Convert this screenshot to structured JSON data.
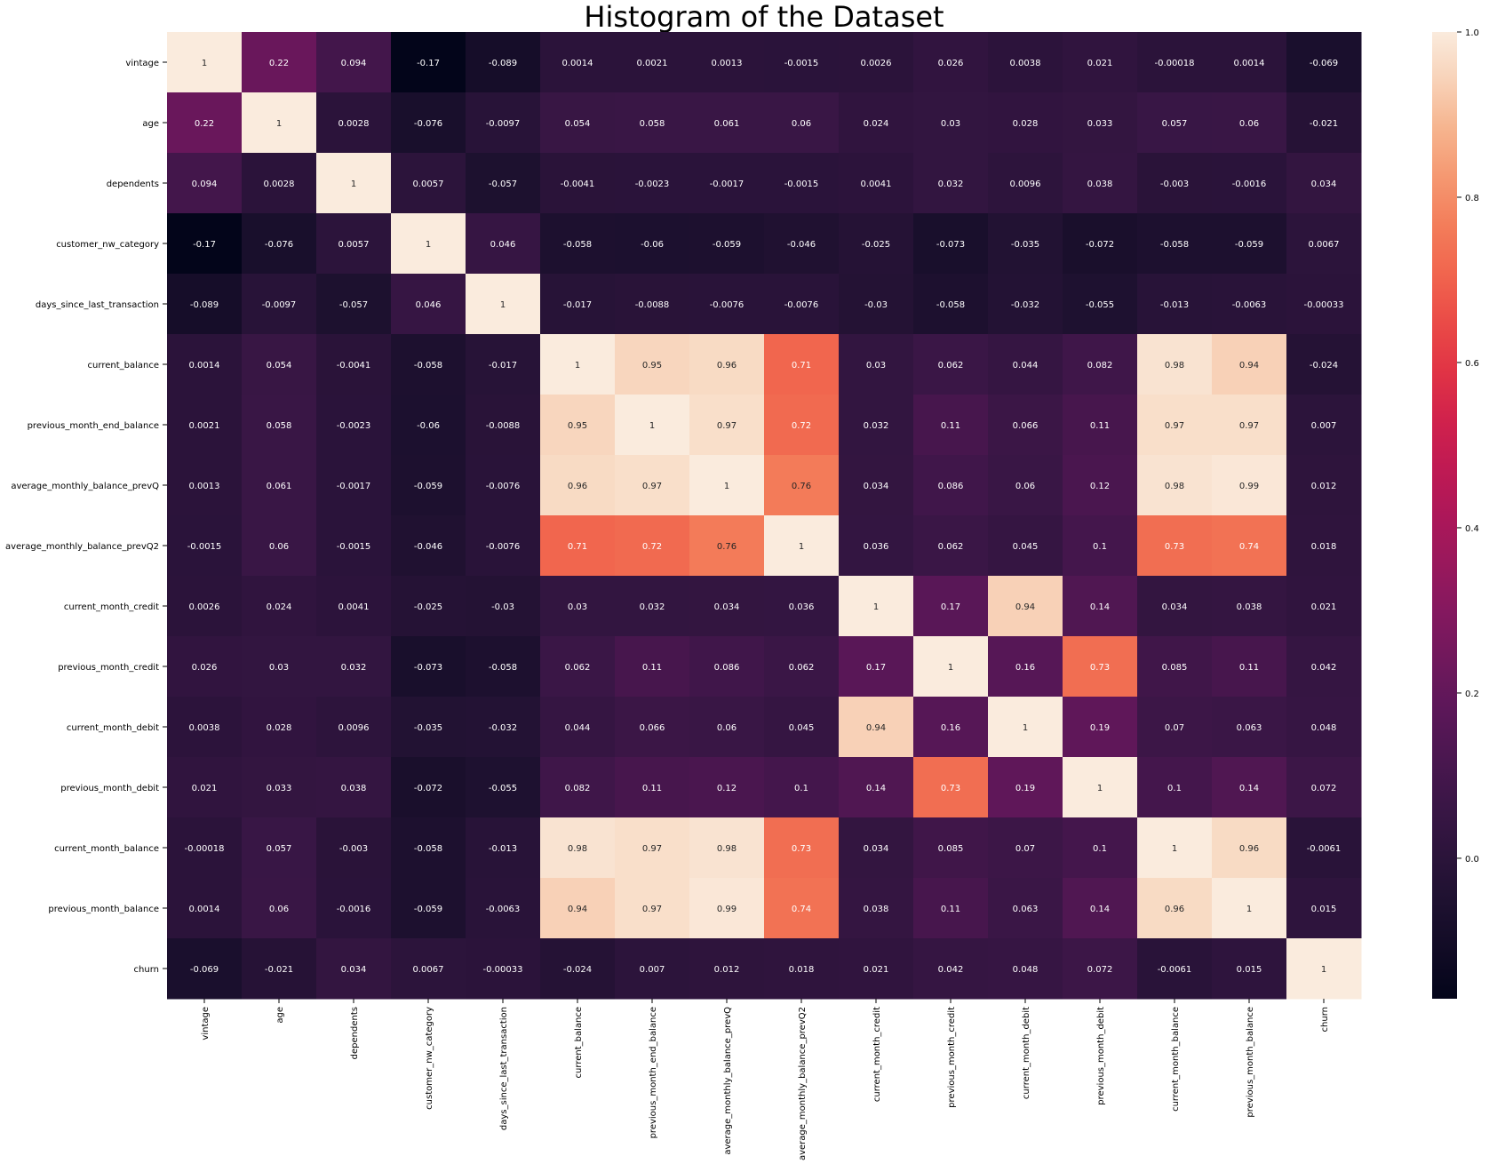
{
  "chart_data": {
    "type": "heatmap",
    "title": "Histogram of the Dataset",
    "labels": [
      "vintage",
      "age",
      "dependents",
      "customer_nw_category",
      "days_since_last_transaction",
      "current_balance",
      "previous_month_end_balance",
      "average_monthly_balance_prevQ",
      "average_monthly_balance_prevQ2",
      "current_month_credit",
      "previous_month_credit",
      "current_month_debit",
      "previous_month_debit",
      "current_month_balance",
      "previous_month_balance",
      "churn"
    ],
    "values": [
      [
        "1",
        "0.22",
        "0.094",
        "-0.17",
        "-0.089",
        "0.0014",
        "0.0021",
        "0.0013",
        "-0.0015",
        "0.0026",
        "0.026",
        "0.0038",
        "0.021",
        "-0.00018",
        "0.0014",
        "-0.069"
      ],
      [
        "0.22",
        "1",
        "0.0028",
        "-0.076",
        "-0.0097",
        "0.054",
        "0.058",
        "0.061",
        "0.06",
        "0.024",
        "0.03",
        "0.028",
        "0.033",
        "0.057",
        "0.06",
        "-0.021"
      ],
      [
        "0.094",
        "0.0028",
        "1",
        "0.0057",
        "-0.057",
        "-0.0041",
        "-0.0023",
        "-0.0017",
        "-0.0015",
        "0.0041",
        "0.032",
        "0.0096",
        "0.038",
        "-0.003",
        "-0.0016",
        "0.034"
      ],
      [
        "-0.17",
        "-0.076",
        "0.0057",
        "1",
        "0.046",
        "-0.058",
        "-0.06",
        "-0.059",
        "-0.046",
        "-0.025",
        "-0.073",
        "-0.035",
        "-0.072",
        "-0.058",
        "-0.059",
        "0.0067"
      ],
      [
        "-0.089",
        "-0.0097",
        "-0.057",
        "0.046",
        "1",
        "-0.017",
        "-0.0088",
        "-0.0076",
        "-0.0076",
        "-0.03",
        "-0.058",
        "-0.032",
        "-0.055",
        "-0.013",
        "-0.0063",
        "-0.00033"
      ],
      [
        "0.0014",
        "0.054",
        "-0.0041",
        "-0.058",
        "-0.017",
        "1",
        "0.95",
        "0.96",
        "0.71",
        "0.03",
        "0.062",
        "0.044",
        "0.082",
        "0.98",
        "0.94",
        "-0.024"
      ],
      [
        "0.0021",
        "0.058",
        "-0.0023",
        "-0.06",
        "-0.0088",
        "0.95",
        "1",
        "0.97",
        "0.72",
        "0.032",
        "0.11",
        "0.066",
        "0.11",
        "0.97",
        "0.97",
        "0.007"
      ],
      [
        "0.0013",
        "0.061",
        "-0.0017",
        "-0.059",
        "-0.0076",
        "0.96",
        "0.97",
        "1",
        "0.76",
        "0.034",
        "0.086",
        "0.06",
        "0.12",
        "0.98",
        "0.99",
        "0.012"
      ],
      [
        "-0.0015",
        "0.06",
        "-0.0015",
        "-0.046",
        "-0.0076",
        "0.71",
        "0.72",
        "0.76",
        "1",
        "0.036",
        "0.062",
        "0.045",
        "0.1",
        "0.73",
        "0.74",
        "0.018"
      ],
      [
        "0.0026",
        "0.024",
        "0.0041",
        "-0.025",
        "-0.03",
        "0.03",
        "0.032",
        "0.034",
        "0.036",
        "1",
        "0.17",
        "0.94",
        "0.14",
        "0.034",
        "0.038",
        "0.021"
      ],
      [
        "0.026",
        "0.03",
        "0.032",
        "-0.073",
        "-0.058",
        "0.062",
        "0.11",
        "0.086",
        "0.062",
        "0.17",
        "1",
        "0.16",
        "0.73",
        "0.085",
        "0.11",
        "0.042"
      ],
      [
        "0.0038",
        "0.028",
        "0.0096",
        "-0.035",
        "-0.032",
        "0.044",
        "0.066",
        "0.06",
        "0.045",
        "0.94",
        "0.16",
        "1",
        "0.19",
        "0.07",
        "0.063",
        "0.048"
      ],
      [
        "0.021",
        "0.033",
        "0.038",
        "-0.072",
        "-0.055",
        "0.082",
        "0.11",
        "0.12",
        "0.1",
        "0.14",
        "0.73",
        "0.19",
        "1",
        "0.1",
        "0.14",
        "0.072"
      ],
      [
        "-0.00018",
        "0.057",
        "-0.003",
        "-0.058",
        "-0.013",
        "0.98",
        "0.97",
        "0.98",
        "0.73",
        "0.034",
        "0.085",
        "0.07",
        "0.1",
        "1",
        "0.96",
        "-0.0061"
      ],
      [
        "0.0014",
        "0.06",
        "-0.0016",
        "-0.059",
        "-0.0063",
        "0.94",
        "0.97",
        "0.99",
        "0.74",
        "0.038",
        "0.11",
        "0.063",
        "0.14",
        "0.96",
        "1",
        "0.015"
      ],
      [
        "-0.069",
        "-0.021",
        "0.034",
        "0.0067",
        "-0.00033",
        "-0.024",
        "0.007",
        "0.012",
        "0.018",
        "0.021",
        "0.042",
        "0.048",
        "0.072",
        "-0.0061",
        "0.015",
        "1"
      ]
    ],
    "colorbar": {
      "range": [
        -0.17,
        1.0
      ],
      "ticks": [
        "0.0",
        "0.2",
        "0.4",
        "0.6",
        "0.8",
        "1.0"
      ],
      "colormap": "rocket"
    }
  }
}
